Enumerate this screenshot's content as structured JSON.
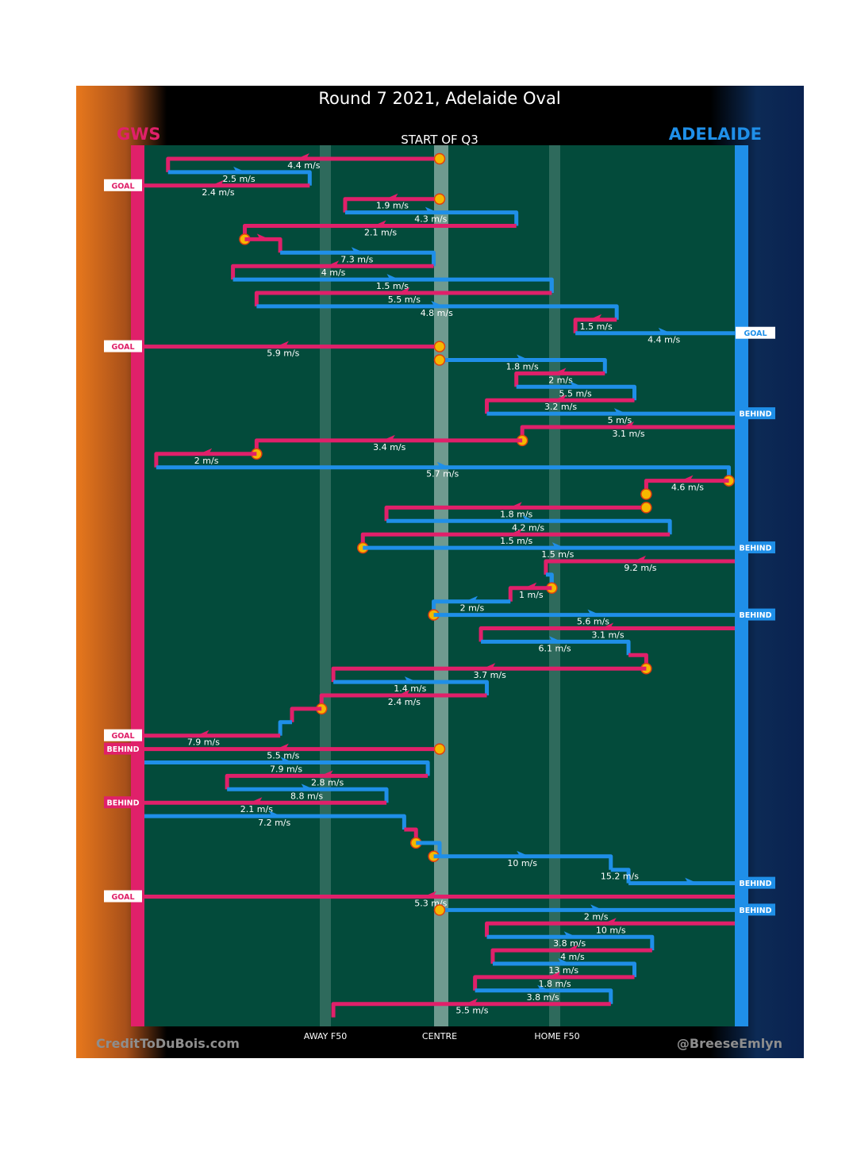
{
  "title": "Round 7 2021, Adelaide Oval",
  "subtitle": "START OF Q3",
  "teams": {
    "left": "GWS",
    "right": "ADELAIDE"
  },
  "axis_labels": {
    "away": "AWAY F50",
    "centre": "CENTRE",
    "home": "HOME F50"
  },
  "credits": {
    "left": "CreditToDuBois.com",
    "right": "@BreeseEmlyn"
  },
  "colors": {
    "gws": "#e0206a",
    "adelaide": "#1f8fe8",
    "field": "#034b3b",
    "stoppage": "#f5b800"
  },
  "chart_data": {
    "type": "chain-flow",
    "title": "Round 7 2021, Adelaide Oval",
    "x_axis": {
      "labels": [
        "AWAY F50",
        "CENTRE",
        "HOME F50"
      ]
    },
    "segments": [
      {
        "team": "GWS",
        "speed": "4.4 m/s",
        "path": [
          [
            0.5,
            0
          ],
          [
            0.04,
            0
          ],
          [
            0.04,
            1
          ]
        ],
        "stop": [
          0.5,
          0
        ]
      },
      {
        "team": "ADELAIDE",
        "speed": "2.5 m/s",
        "path": [
          [
            0.04,
            1
          ],
          [
            0.28,
            1
          ],
          [
            0.28,
            2
          ]
        ]
      },
      {
        "team": "GWS",
        "speed": "2.4 m/s",
        "path": [
          [
            0.28,
            2
          ],
          [
            -0.03,
            2
          ]
        ],
        "result": "GOAL"
      },
      {
        "team": "GWS",
        "speed": "1.9 m/s",
        "path": [
          [
            0.5,
            3
          ],
          [
            0.34,
            3
          ],
          [
            0.34,
            4
          ]
        ],
        "stop": [
          0.5,
          3
        ]
      },
      {
        "team": "ADELAIDE",
        "speed": "4.3 m/s",
        "path": [
          [
            0.34,
            4
          ],
          [
            0.63,
            4
          ],
          [
            0.63,
            5
          ]
        ]
      },
      {
        "team": "GWS",
        "speed": "2.1 m/s",
        "path": [
          [
            0.63,
            5
          ],
          [
            0.17,
            5
          ],
          [
            0.17,
            6
          ]
        ],
        "stop": [
          0.17,
          6
        ]
      },
      {
        "team": "GWS",
        "speed": "",
        "path": [
          [
            0.17,
            6
          ],
          [
            0.23,
            6
          ],
          [
            0.23,
            7
          ]
        ]
      },
      {
        "team": "ADELAIDE",
        "speed": "7.3 m/s",
        "path": [
          [
            0.23,
            7
          ],
          [
            0.49,
            7
          ],
          [
            0.49,
            8
          ]
        ]
      },
      {
        "team": "GWS",
        "speed": "4 m/s",
        "path": [
          [
            0.49,
            8
          ],
          [
            0.15,
            8
          ],
          [
            0.15,
            9
          ]
        ]
      },
      {
        "team": "ADELAIDE",
        "speed": "1.5 m/s",
        "path": [
          [
            0.15,
            9
          ],
          [
            0.69,
            9
          ],
          [
            0.69,
            10
          ]
        ]
      },
      {
        "team": "GWS",
        "speed": "5.5 m/s",
        "path": [
          [
            0.69,
            10
          ],
          [
            0.19,
            10
          ],
          [
            0.19,
            11
          ]
        ]
      },
      {
        "team": "ADELAIDE",
        "speed": "4.8 m/s",
        "path": [
          [
            0.19,
            11
          ],
          [
            0.8,
            11
          ],
          [
            0.8,
            12
          ]
        ]
      },
      {
        "team": "GWS",
        "speed": "1.5 m/s",
        "path": [
          [
            0.8,
            12
          ],
          [
            0.73,
            12
          ],
          [
            0.73,
            13
          ]
        ]
      },
      {
        "team": "ADELAIDE",
        "speed": "4.4 m/s",
        "path": [
          [
            0.73,
            13
          ],
          [
            1.03,
            13
          ]
        ],
        "result": "GOAL"
      },
      {
        "team": "GWS",
        "speed": "5.9 m/s",
        "path": [
          [
            0.5,
            14
          ],
          [
            -0.03,
            14
          ]
        ],
        "result": "GOAL",
        "stop": [
          0.5,
          14
        ]
      },
      {
        "team": "ADELAIDE",
        "speed": "1.8 m/s",
        "path": [
          [
            0.5,
            15
          ],
          [
            0.78,
            15
          ],
          [
            0.78,
            16
          ]
        ],
        "stop": [
          0.5,
          15
        ]
      },
      {
        "team": "GWS",
        "speed": "2 m/s",
        "path": [
          [
            0.78,
            16
          ],
          [
            0.63,
            16
          ],
          [
            0.63,
            17
          ]
        ]
      },
      {
        "team": "ADELAIDE",
        "speed": "5.5 m/s",
        "path": [
          [
            0.63,
            17
          ],
          [
            0.83,
            17
          ],
          [
            0.83,
            18
          ]
        ]
      },
      {
        "team": "GWS",
        "speed": "3.2 m/s",
        "path": [
          [
            0.83,
            18
          ],
          [
            0.58,
            18
          ],
          [
            0.58,
            19
          ]
        ]
      },
      {
        "team": "ADELAIDE",
        "speed": "5 m/s",
        "path": [
          [
            0.58,
            19
          ],
          [
            1.03,
            19
          ]
        ],
        "result": "BEHIND"
      },
      {
        "team": "GWS",
        "speed": "3.1 m/s",
        "path": [
          [
            1.0,
            20
          ],
          [
            0.64,
            20
          ],
          [
            0.64,
            21
          ]
        ],
        "stop": [
          0.64,
          21
        ]
      },
      {
        "team": "GWS",
        "speed": "3.4 m/s",
        "path": [
          [
            0.64,
            21
          ],
          [
            0.19,
            21
          ],
          [
            0.19,
            22
          ]
        ],
        "stop": [
          0.19,
          22
        ]
      },
      {
        "team": "GWS",
        "speed": "2 m/s",
        "path": [
          [
            0.19,
            22
          ],
          [
            0.02,
            22
          ],
          [
            0.02,
            23
          ]
        ]
      },
      {
        "team": "ADELAIDE",
        "speed": "5.7 m/s",
        "path": [
          [
            0.02,
            23
          ],
          [
            0.99,
            23
          ],
          [
            0.99,
            24
          ]
        ],
        "stop": [
          0.99,
          24
        ]
      },
      {
        "team": "GWS",
        "speed": "4.6 m/s",
        "path": [
          [
            0.99,
            24
          ],
          [
            0.85,
            24
          ],
          [
            0.85,
            25
          ]
        ],
        "stop": [
          0.85,
          25
        ]
      },
      {
        "team": "GWS",
        "speed": "1.8 m/s",
        "path": [
          [
            0.85,
            26
          ],
          [
            0.41,
            26
          ],
          [
            0.41,
            27
          ]
        ],
        "stop": [
          0.85,
          26
        ]
      },
      {
        "team": "ADELAIDE",
        "speed": "4.2 m/s",
        "path": [
          [
            0.41,
            27
          ],
          [
            0.89,
            27
          ],
          [
            0.89,
            28
          ]
        ]
      },
      {
        "team": "GWS",
        "speed": "1.5 m/s",
        "path": [
          [
            0.89,
            28
          ],
          [
            0.37,
            28
          ],
          [
            0.37,
            29
          ]
        ],
        "stop": [
          0.37,
          29
        ]
      },
      {
        "team": "ADELAIDE",
        "speed": "1.5 m/s",
        "path": [
          [
            0.37,
            29
          ],
          [
            1.03,
            29
          ]
        ],
        "result": "BEHIND"
      },
      {
        "team": "GWS",
        "speed": "9.2 m/s",
        "path": [
          [
            1.0,
            30
          ],
          [
            0.68,
            30
          ],
          [
            0.68,
            31
          ]
        ]
      },
      {
        "team": "ADELAIDE",
        "speed": "",
        "path": [
          [
            0.68,
            31
          ],
          [
            0.69,
            31
          ],
          [
            0.69,
            32
          ]
        ],
        "stop": [
          0.69,
          32
        ]
      },
      {
        "team": "GWS",
        "speed": "1 m/s",
        "path": [
          [
            0.69,
            32
          ],
          [
            0.62,
            32
          ],
          [
            0.62,
            33
          ]
        ]
      },
      {
        "team": "ADELAIDE",
        "speed": "2 m/s",
        "path": [
          [
            0.62,
            33
          ],
          [
            0.49,
            33
          ],
          [
            0.49,
            34
          ]
        ],
        "stop": [
          0.49,
          34
        ]
      },
      {
        "team": "ADELAIDE",
        "speed": "5.6 m/s",
        "path": [
          [
            0.49,
            34
          ],
          [
            1.03,
            34
          ]
        ],
        "result": "BEHIND"
      },
      {
        "team": "GWS",
        "speed": "3.1 m/s",
        "path": [
          [
            1.0,
            35
          ],
          [
            0.57,
            35
          ],
          [
            0.57,
            36
          ]
        ]
      },
      {
        "team": "ADELAIDE",
        "speed": "6.1 m/s",
        "path": [
          [
            0.57,
            36
          ],
          [
            0.82,
            36
          ],
          [
            0.82,
            37
          ]
        ]
      },
      {
        "team": "GWS",
        "speed": "",
        "path": [
          [
            0.82,
            37
          ],
          [
            0.85,
            37
          ],
          [
            0.85,
            38
          ]
        ],
        "stop": [
          0.85,
          38
        ]
      },
      {
        "team": "GWS",
        "speed": "3.7 m/s",
        "path": [
          [
            0.85,
            38
          ],
          [
            0.32,
            38
          ],
          [
            0.32,
            39
          ]
        ]
      },
      {
        "team": "ADELAIDE",
        "speed": "1.4 m/s",
        "path": [
          [
            0.32,
            39
          ],
          [
            0.58,
            39
          ],
          [
            0.58,
            40
          ]
        ]
      },
      {
        "team": "GWS",
        "speed": "2.4 m/s",
        "path": [
          [
            0.58,
            40
          ],
          [
            0.3,
            40
          ],
          [
            0.3,
            41
          ]
        ],
        "stop": [
          0.3,
          41
        ]
      },
      {
        "team": "GWS",
        "speed": "",
        "path": [
          [
            0.3,
            41
          ],
          [
            0.25,
            41
          ],
          [
            0.25,
            42
          ]
        ]
      },
      {
        "team": "ADELAIDE",
        "speed": "",
        "path": [
          [
            0.25,
            42
          ],
          [
            0.23,
            42
          ],
          [
            0.23,
            43
          ]
        ]
      },
      {
        "team": "GWS",
        "speed": "7.9 m/s",
        "path": [
          [
            0.23,
            43
          ],
          [
            -0.03,
            43
          ]
        ],
        "result": "GOAL"
      },
      {
        "team": "GWS",
        "speed": "5.5 m/s",
        "path": [
          [
            0.5,
            44
          ],
          [
            -0.03,
            44
          ]
        ],
        "result": "BEHIND",
        "stop": [
          0.5,
          44
        ]
      },
      {
        "team": "ADELAIDE",
        "speed": "7.9 m/s",
        "path": [
          [
            0.0,
            45
          ],
          [
            0.48,
            45
          ],
          [
            0.48,
            46
          ]
        ]
      },
      {
        "team": "GWS",
        "speed": "2.8 m/s",
        "path": [
          [
            0.48,
            46
          ],
          [
            0.14,
            46
          ],
          [
            0.14,
            47
          ]
        ]
      },
      {
        "team": "ADELAIDE",
        "speed": "8.8 m/s",
        "path": [
          [
            0.14,
            47
          ],
          [
            0.41,
            47
          ],
          [
            0.41,
            48
          ]
        ]
      },
      {
        "team": "GWS",
        "speed": "2.1 m/s",
        "path": [
          [
            0.41,
            48
          ],
          [
            -0.03,
            48
          ]
        ],
        "result": "BEHIND"
      },
      {
        "team": "ADELAIDE",
        "speed": "7.2 m/s",
        "path": [
          [
            0.0,
            49
          ],
          [
            0.44,
            49
          ],
          [
            0.44,
            50
          ]
        ]
      },
      {
        "team": "GWS",
        "speed": "",
        "path": [
          [
            0.44,
            50
          ],
          [
            0.46,
            50
          ],
          [
            0.46,
            51
          ]
        ],
        "stop": [
          0.46,
          51
        ]
      },
      {
        "team": "ADELAIDE",
        "speed": "",
        "path": [
          [
            0.46,
            51
          ],
          [
            0.5,
            51
          ],
          [
            0.5,
            52
          ]
        ],
        "stop": [
          0.49,
          52
        ]
      },
      {
        "team": "ADELAIDE",
        "speed": "10 m/s",
        "path": [
          [
            0.49,
            52
          ],
          [
            0.79,
            52
          ],
          [
            0.79,
            53
          ]
        ]
      },
      {
        "team": "ADELAIDE",
        "speed": "15.2 m/s",
        "path": [
          [
            0.79,
            53
          ],
          [
            0.82,
            53
          ],
          [
            0.82,
            54
          ]
        ]
      },
      {
        "team": "ADELAIDE",
        "speed": "",
        "path": [
          [
            0.82,
            54
          ],
          [
            1.03,
            54
          ]
        ],
        "result": "BEHIND"
      },
      {
        "team": "GWS",
        "speed": "5.3 m/s",
        "path": [
          [
            1.0,
            55
          ],
          [
            -0.03,
            55
          ]
        ],
        "result": "GOAL"
      },
      {
        "team": "ADELAIDE",
        "speed": "2 m/s",
        "path": [
          [
            0.5,
            56
          ],
          [
            1.03,
            56
          ]
        ],
        "result": "BEHIND",
        "stop": [
          0.5,
          56
        ]
      },
      {
        "team": "GWS",
        "speed": "10 m/s",
        "path": [
          [
            1.0,
            57
          ],
          [
            0.58,
            57
          ],
          [
            0.58,
            58
          ]
        ]
      },
      {
        "team": "ADELAIDE",
        "speed": "3.8 m/s",
        "path": [
          [
            0.58,
            58
          ],
          [
            0.86,
            58
          ],
          [
            0.86,
            59
          ]
        ]
      },
      {
        "team": "GWS",
        "speed": "4 m/s",
        "path": [
          [
            0.86,
            59
          ],
          [
            0.59,
            59
          ],
          [
            0.59,
            60
          ]
        ]
      },
      {
        "team": "ADELAIDE",
        "speed": "13 m/s",
        "path": [
          [
            0.59,
            60
          ],
          [
            0.83,
            60
          ],
          [
            0.83,
            61
          ]
        ]
      },
      {
        "team": "GWS",
        "speed": "1.8 m/s",
        "path": [
          [
            0.83,
            61
          ],
          [
            0.56,
            61
          ],
          [
            0.56,
            62
          ]
        ]
      },
      {
        "team": "ADELAIDE",
        "speed": "3.8 m/s",
        "path": [
          [
            0.56,
            62
          ],
          [
            0.79,
            62
          ],
          [
            0.79,
            63
          ]
        ]
      },
      {
        "team": "GWS",
        "speed": "5.5 m/s",
        "path": [
          [
            0.79,
            63
          ],
          [
            0.32,
            63
          ],
          [
            0.32,
            64
          ]
        ]
      }
    ]
  }
}
